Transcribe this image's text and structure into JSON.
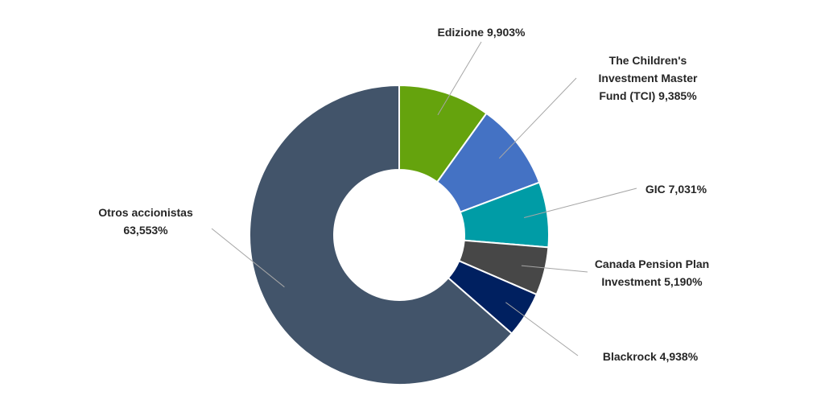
{
  "chart_data": {
    "type": "pie",
    "variant": "donut",
    "title": "",
    "slices": [
      {
        "name": "Edizione",
        "value": 9.903,
        "label_lines": [
          "Edizione 9,903%"
        ],
        "color": "#65a30d"
      },
      {
        "name": "The Children's Investment Master Fund (TCI)",
        "value": 9.385,
        "label_lines": [
          "The Children's",
          "Investment Master",
          "Fund (TCI) 9,385%"
        ],
        "color": "#4472c4"
      },
      {
        "name": "GIC",
        "value": 7.031,
        "label_lines": [
          "GIC 7,031%"
        ],
        "color": "#009ca6"
      },
      {
        "name": "Canada Pension Plan Investment",
        "value": 5.19,
        "label_lines": [
          "Canada Pension Plan",
          "Investment 5,190%"
        ],
        "color": "#474747"
      },
      {
        "name": "Blackrock",
        "value": 4.938,
        "label_lines": [
          "Blackrock 4,938%"
        ],
        "color": "#002060"
      },
      {
        "name": "Otros accionistas",
        "value": 63.553,
        "label_lines": [
          "Otros accionistas",
          "63,553%"
        ],
        "color": "#42546a"
      }
    ]
  }
}
